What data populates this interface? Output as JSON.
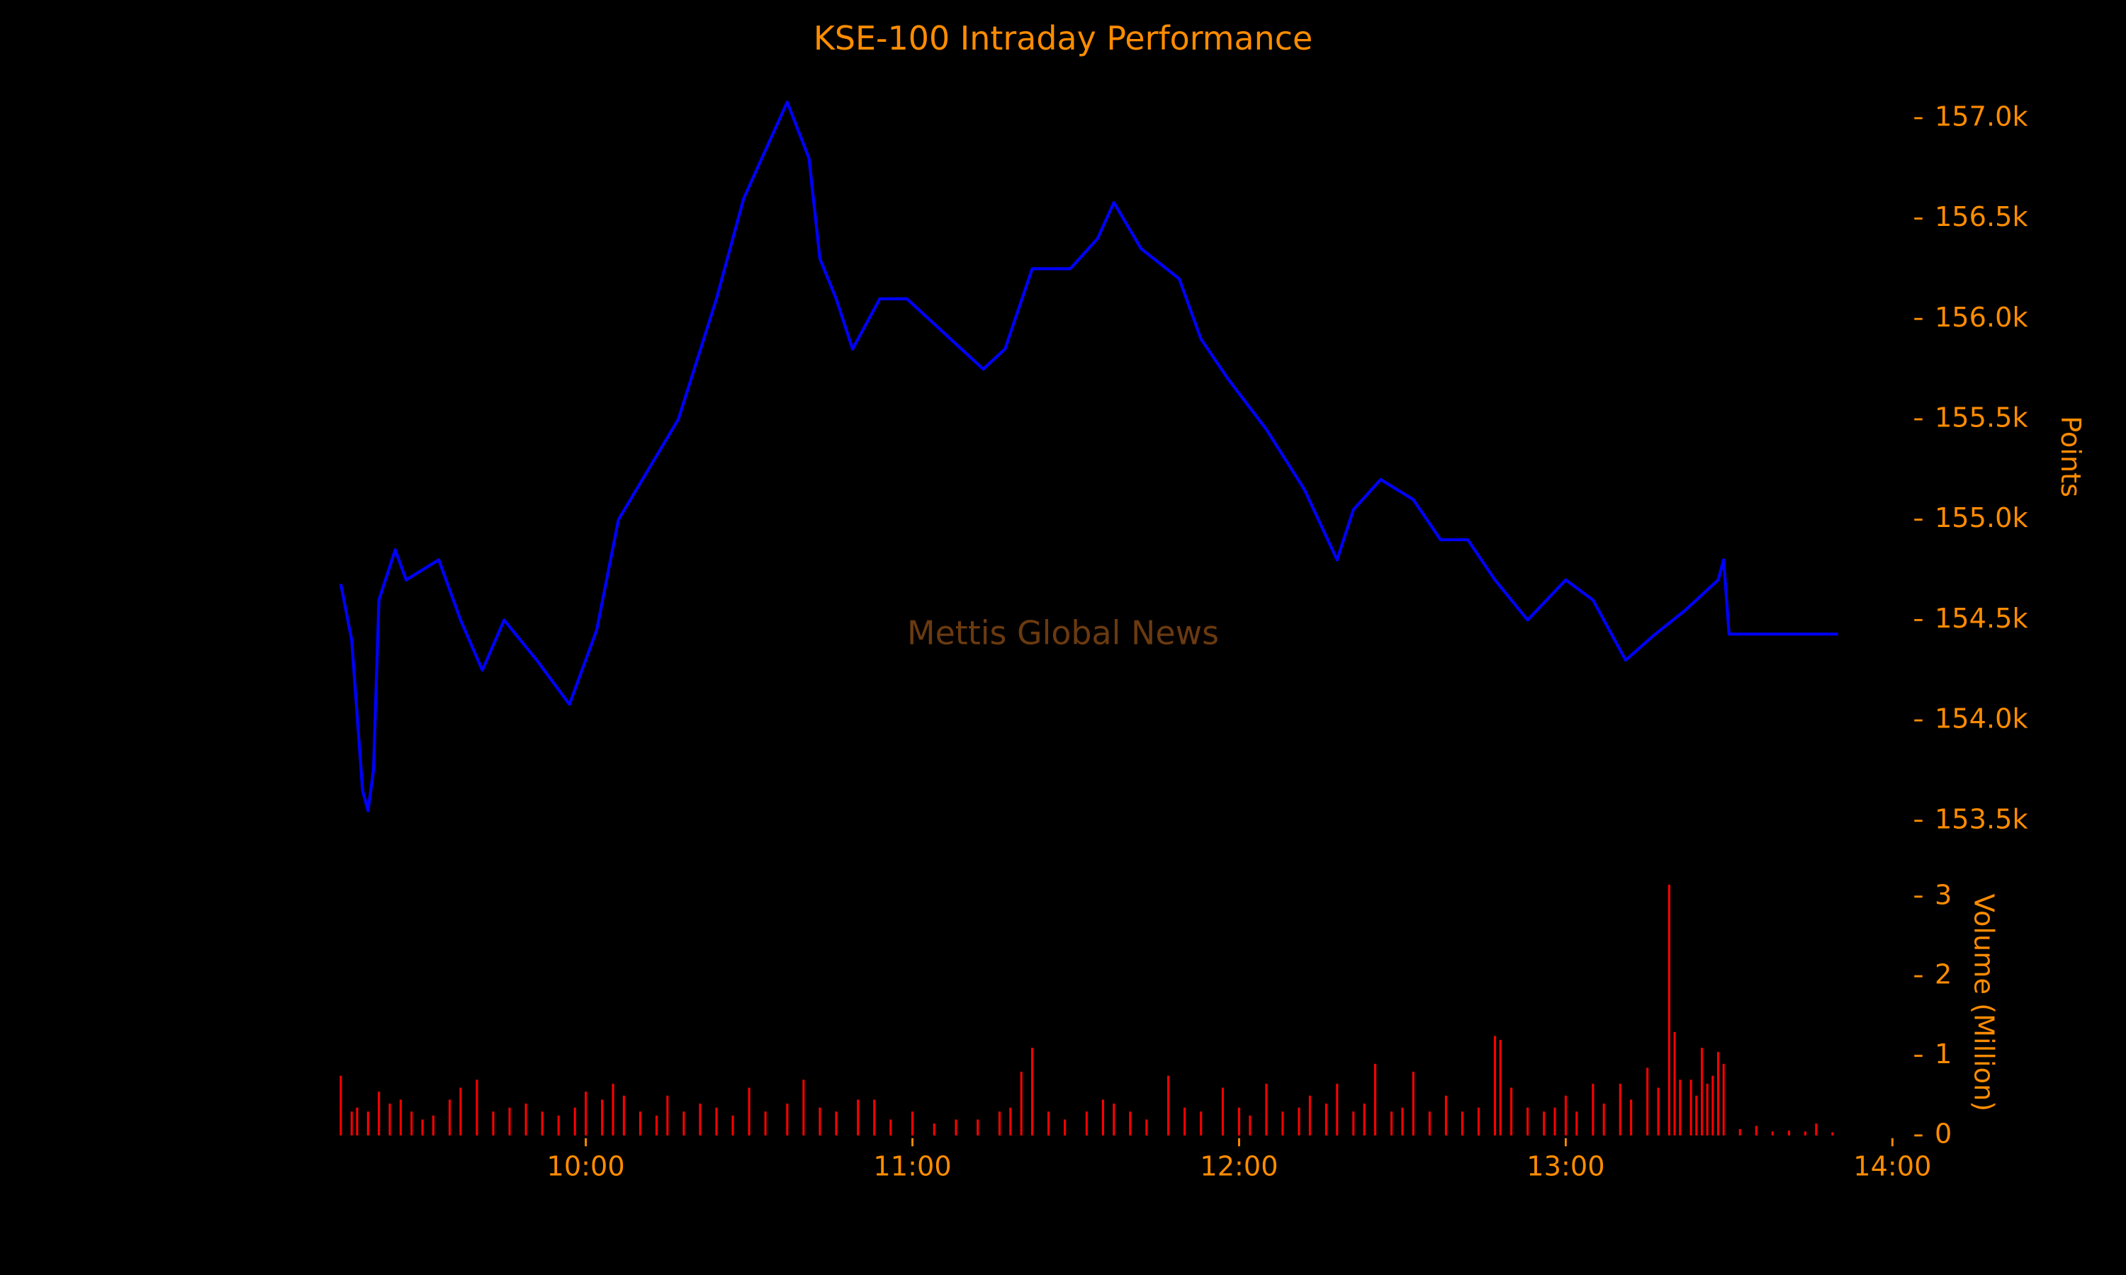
{
  "chart_data": [
    {
      "type": "line",
      "title": "KSE-100 Intraday Performance",
      "y_label": "Points",
      "annotation": "Mettis Global News",
      "xlim": [
        540,
        850
      ],
      "ylim": [
        153350,
        157150
      ],
      "yticks": [
        {
          "value": 153500,
          "label": "153.5k"
        },
        {
          "value": 154000,
          "label": "154.0k"
        },
        {
          "value": 154500,
          "label": "154.5k"
        },
        {
          "value": 155000,
          "label": "155.0k"
        },
        {
          "value": 155500,
          "label": "155.5k"
        },
        {
          "value": 156000,
          "label": "156.0k"
        },
        {
          "value": 156500,
          "label": "156.5k"
        },
        {
          "value": 157000,
          "label": "157.0k"
        }
      ],
      "series": [
        {
          "color": "#0000ff",
          "x": [
            555,
            557,
            559,
            560,
            561,
            562,
            565,
            567,
            573,
            577,
            581,
            585,
            591,
            597,
            602,
            606,
            617,
            624,
            629,
            637,
            641,
            643,
            646,
            649,
            654,
            659,
            667,
            673,
            677,
            682,
            689,
            694,
            697,
            702,
            709,
            713,
            718,
            725,
            732,
            738,
            741,
            746,
            752,
            757,
            762,
            767,
            773,
            780,
            785,
            791,
            796,
            802,
            808,
            809,
            810,
            830
          ],
          "values": [
            154680,
            154400,
            153650,
            153550,
            153750,
            154600,
            154850,
            154700,
            154800,
            154500,
            154250,
            154500,
            154300,
            154080,
            154450,
            155000,
            155500,
            156100,
            156600,
            157080,
            156800,
            156300,
            156100,
            155850,
            156100,
            156100,
            155900,
            155750,
            155850,
            156250,
            156250,
            156400,
            156580,
            156350,
            156200,
            155900,
            155700,
            155450,
            155150,
            154800,
            155050,
            155200,
            155100,
            154900,
            154900,
            154700,
            154500,
            154700,
            154600,
            154300,
            154420,
            154550,
            154700,
            154800,
            154430,
            154430
          ]
        }
      ]
    },
    {
      "type": "bar",
      "y_label": "Volume (Million)",
      "xlim": [
        540,
        850
      ],
      "ylim": [
        0,
        3.2
      ],
      "xticks": [
        {
          "value": 600,
          "label": "10:00"
        },
        {
          "value": 660,
          "label": "11:00"
        },
        {
          "value": 720,
          "label": "12:00"
        },
        {
          "value": 780,
          "label": "13:00"
        },
        {
          "value": 840,
          "label": "14:00"
        }
      ],
      "yticks": [
        0,
        1,
        2,
        3
      ],
      "series": [
        {
          "color": "#ff0000",
          "x": [
            555,
            557,
            558,
            560,
            562,
            564,
            566,
            568,
            570,
            572,
            575,
            577,
            580,
            583,
            586,
            589,
            592,
            595,
            598,
            600,
            603,
            605,
            607,
            610,
            613,
            615,
            618,
            621,
            624,
            627,
            630,
            633,
            637,
            640,
            643,
            646,
            650,
            653,
            656,
            660,
            664,
            668,
            672,
            676,
            678,
            680,
            682,
            685,
            688,
            692,
            695,
            697,
            700,
            703,
            707,
            710,
            713,
            717,
            720,
            722,
            725,
            728,
            731,
            733,
            736,
            738,
            741,
            743,
            745,
            748,
            750,
            752,
            755,
            758,
            761,
            764,
            767,
            768,
            770,
            773,
            776,
            778,
            780,
            782,
            785,
            787,
            790,
            792,
            795,
            797,
            799,
            800,
            801,
            803,
            804,
            805,
            806,
            807,
            808,
            809,
            812,
            815,
            818,
            821,
            824,
            826,
            829
          ],
          "values": [
            0.75,
            0.3,
            0.35,
            0.3,
            0.55,
            0.4,
            0.45,
            0.3,
            0.2,
            0.25,
            0.45,
            0.6,
            0.7,
            0.3,
            0.35,
            0.4,
            0.3,
            0.25,
            0.35,
            0.55,
            0.45,
            0.65,
            0.5,
            0.3,
            0.25,
            0.5,
            0.3,
            0.4,
            0.35,
            0.25,
            0.6,
            0.3,
            0.4,
            0.7,
            0.35,
            0.3,
            0.45,
            0.45,
            0.2,
            0.3,
            0.15,
            0.2,
            0.2,
            0.3,
            0.35,
            0.8,
            1.1,
            0.3,
            0.2,
            0.3,
            0.45,
            0.4,
            0.3,
            0.2,
            0.75,
            0.35,
            0.3,
            0.6,
            0.35,
            0.25,
            0.65,
            0.3,
            0.35,
            0.5,
            0.4,
            0.65,
            0.3,
            0.4,
            0.9,
            0.3,
            0.35,
            0.8,
            0.3,
            0.5,
            0.3,
            0.35,
            1.25,
            1.2,
            0.6,
            0.35,
            0.3,
            0.35,
            0.5,
            0.3,
            0.65,
            0.4,
            0.65,
            0.45,
            0.85,
            0.6,
            3.15,
            1.3,
            0.7,
            0.7,
            0.5,
            1.1,
            0.65,
            0.75,
            1.05,
            0.9,
            0.08,
            0.12,
            0.05,
            0.06,
            0.05,
            0.15,
            0.04
          ]
        }
      ]
    }
  ]
}
